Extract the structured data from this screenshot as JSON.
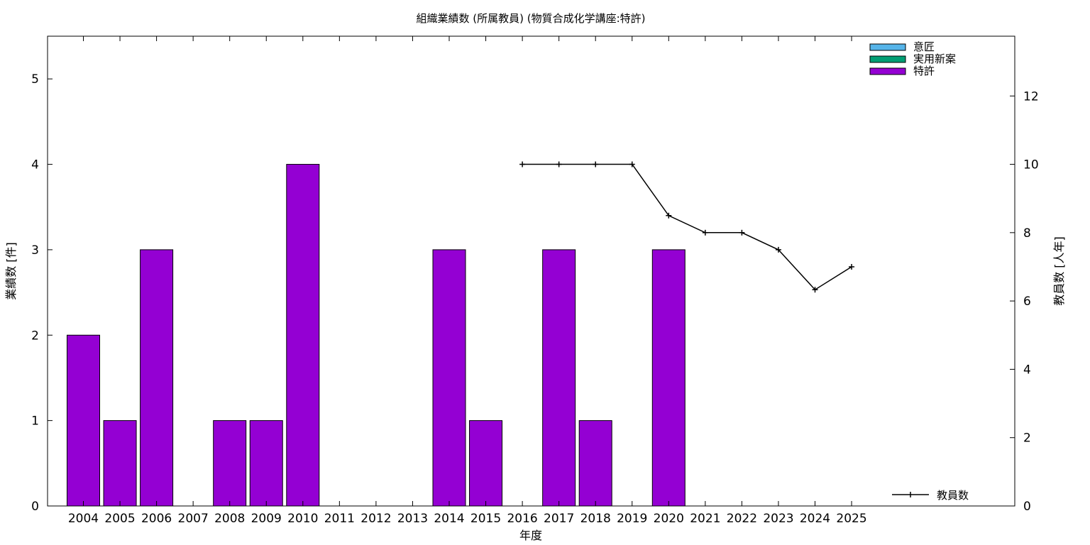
{
  "chart_data": {
    "type": "bar",
    "title": "組織業績数 (所属教員) (物質合成化学講座:特許)",
    "xlabel": "年度",
    "ylabel": "業績数 [件]",
    "y2label": "教員数 [人年]",
    "categories": [
      "2004",
      "2005",
      "2006",
      "2007",
      "2008",
      "2009",
      "2010",
      "2011",
      "2012",
      "2013",
      "2014",
      "2015",
      "2016",
      "2017",
      "2018",
      "2019",
      "2020",
      "2021",
      "2022",
      "2023",
      "2024",
      "2025"
    ],
    "ylim": [
      0,
      5.5
    ],
    "y2lim": [
      0,
      13.75
    ],
    "yticks": [
      0,
      1,
      2,
      3,
      4,
      5
    ],
    "y2ticks": [
      0,
      2,
      4,
      6,
      8,
      10,
      12
    ],
    "series": [
      {
        "name": "意匠",
        "color": "#56b4e9",
        "values": [
          0,
          0,
          0,
          0,
          0,
          0,
          0,
          0,
          0,
          0,
          0,
          0,
          0,
          0,
          0,
          0,
          0,
          0,
          0,
          0,
          0,
          0
        ]
      },
      {
        "name": "実用新案",
        "color": "#009e73",
        "values": [
          0,
          0,
          0,
          0,
          0,
          0,
          0,
          0,
          0,
          0,
          0,
          0,
          0,
          0,
          0,
          0,
          0,
          0,
          0,
          0,
          0,
          0
        ]
      },
      {
        "name": "特許",
        "color": "#9400d3",
        "values": [
          2,
          1,
          3,
          0,
          1,
          1,
          4,
          0,
          0,
          0,
          3,
          1,
          0,
          3,
          1,
          0,
          3,
          0,
          0,
          0,
          0,
          0
        ]
      }
    ],
    "line_series": {
      "name": "教員数",
      "color": "#000000",
      "axis": "y2",
      "x": [
        "2016",
        "2017",
        "2018",
        "2019",
        "2020",
        "2021",
        "2022",
        "2023",
        "2024",
        "2025"
      ],
      "values": [
        10,
        10,
        10,
        10,
        8.5,
        8,
        8,
        7.5,
        6.33,
        7
      ]
    },
    "legend_position": "top-right",
    "grid": false
  }
}
